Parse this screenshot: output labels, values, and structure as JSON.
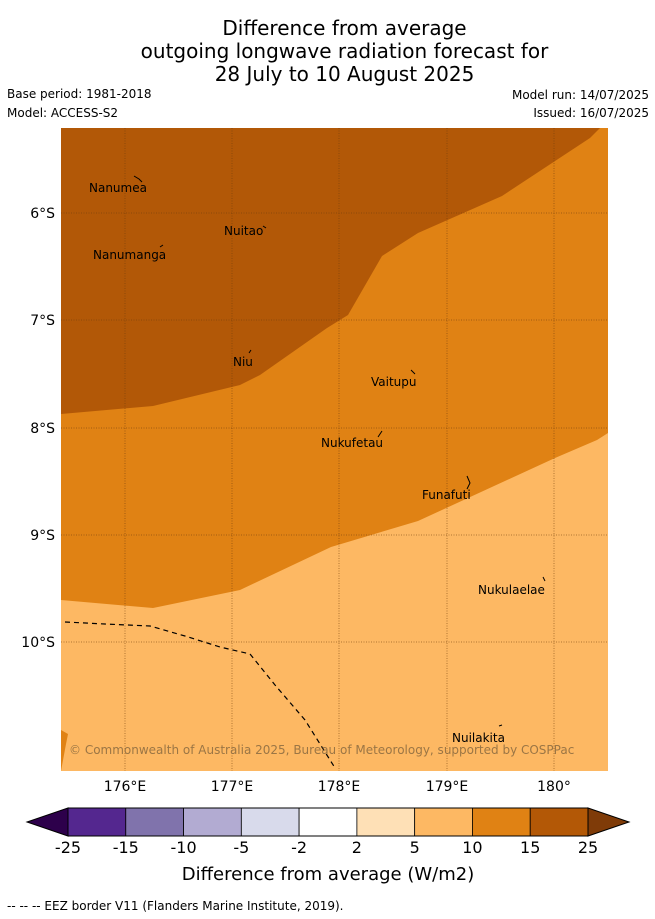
{
  "title": {
    "line1": "Difference from average",
    "line2": "outgoing longwave radiation forecast for",
    "line3": "28 July to 10 August 2025"
  },
  "meta": {
    "base_period": "Base period: 1981-2018",
    "model": "Model: ACCESS-S2",
    "model_run": "Model run: 14/07/2025",
    "issued": "Issued: 16/07/2025"
  },
  "map": {
    "lon_range": [
      175.4,
      180.5
    ],
    "lat_range": [
      -5.2,
      -11.2
    ],
    "lat_ticks": [
      "6°S",
      "7°S",
      "8°S",
      "9°S",
      "10°S"
    ],
    "lon_ticks": [
      "176°E",
      "177°E",
      "178°E",
      "179°E",
      "180°"
    ],
    "places": [
      {
        "name": "Nanumea"
      },
      {
        "name": "Nuitao"
      },
      {
        "name": "Nanumanga"
      },
      {
        "name": "Niu"
      },
      {
        "name": "Vaitupu"
      },
      {
        "name": "Nukufetau"
      },
      {
        "name": "Funafuti"
      },
      {
        "name": "Nukulaelae"
      },
      {
        "name": "Nuilakita"
      }
    ],
    "copyright": "© Commonwealth of Australia 2025, Bureau of Meteorology, supported by COSPPac",
    "zones": [
      {
        "range": "15 to 25",
        "color": "#b25807"
      },
      {
        "range": "10 to 15",
        "color": "#e08214"
      },
      {
        "range": "5 to 10",
        "color": "#fdb863"
      }
    ]
  },
  "colorbar": {
    "ticks": [
      "-25",
      "-15",
      "-10",
      "-5",
      "-2",
      "2",
      "5",
      "10",
      "15",
      "25"
    ],
    "colors": [
      "#54278f",
      "#8073ac",
      "#b2abd2",
      "#d8daeb",
      "#ffffff",
      "#fee0b6",
      "#fdb863",
      "#e08214",
      "#b35806"
    ],
    "under_color": "#2d004b",
    "over_color": "#7f3b08",
    "label": "Difference from average (W/m2)"
  },
  "footer": "--  --  -- EEZ border V11 (Flanders Marine Institute, 2019)."
}
